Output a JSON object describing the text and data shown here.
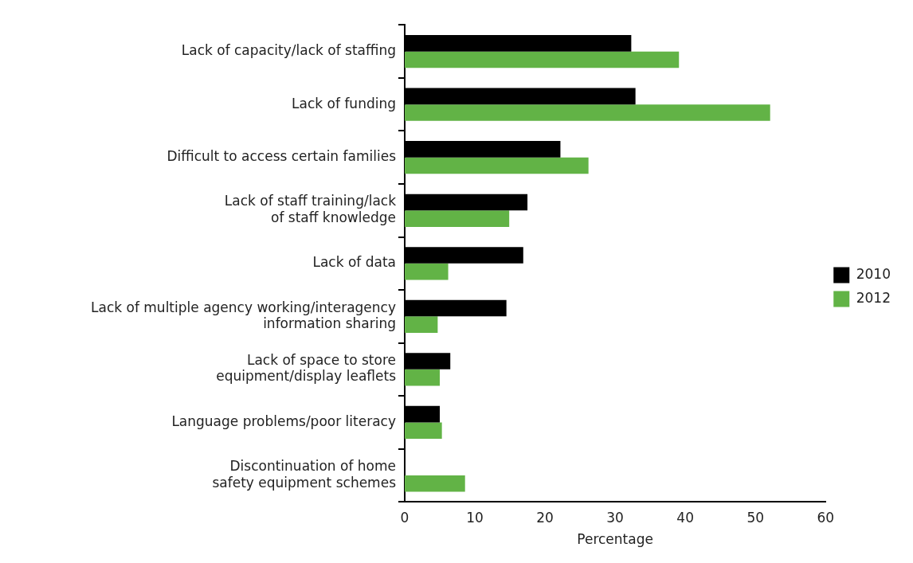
{
  "chart_data": {
    "type": "bar",
    "orientation": "horizontal",
    "xlabel": "Percentage",
    "categories": [
      "Lack of capacity/lack of staffing",
      "Lack of funding",
      "Difficult to access certain families",
      "Lack of staff training/lack\nof staff knowledge",
      "Lack of data",
      "Lack of multiple agency working/interagency\ninformation sharing",
      "Lack of space to store\nequipment/display leaflets",
      "Language problems/poor literacy",
      "Discontinuation of home\nsafety equipment schemes"
    ],
    "series": [
      {
        "name": "2010",
        "color": "#000000",
        "values": [
          32.3,
          32.9,
          22.2,
          17.5,
          16.9,
          14.5,
          6.5,
          5.0,
          null
        ]
      },
      {
        "name": "2012",
        "color": "#62b346",
        "values": [
          39.1,
          52.1,
          26.2,
          14.9,
          6.2,
          4.7,
          5.0,
          5.3,
          8.6
        ]
      }
    ],
    "xlim": [
      0,
      60
    ],
    "xticks": [
      0,
      10,
      20,
      30,
      40,
      50,
      60
    ],
    "grid": false,
    "legend": "right"
  }
}
